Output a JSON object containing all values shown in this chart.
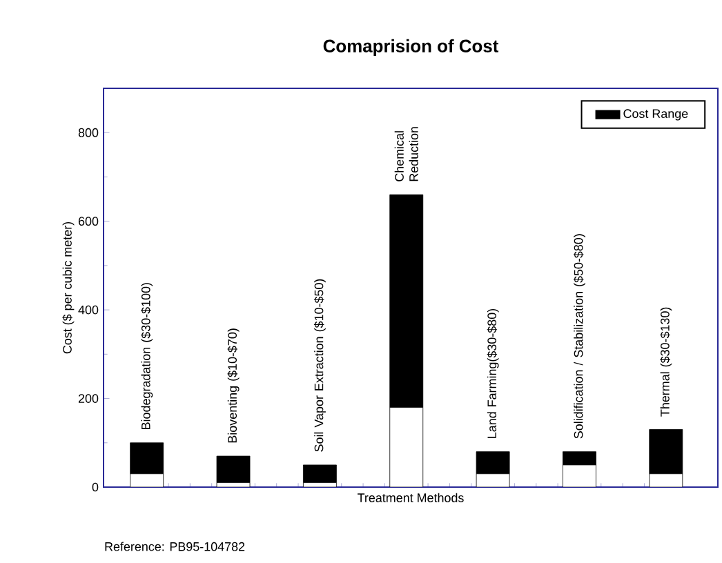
{
  "chart_data": {
    "type": "bar",
    "title": "Comaprision of Cost",
    "xlabel": "Treatment Methods",
    "ylabel": "Cost ($ per cubic meter)",
    "categories": [
      "Biodegradation  ($30-$100)",
      "Bioventing  ($10-$70)",
      "Soil Vapor Extraction  ($10-$50)",
      "Chemical Reduction",
      "Land Farming($30-$80)",
      "Solidification / Stabilization  ($50-$80)",
      "Thermal  ($30-$130)"
    ],
    "stacked": true,
    "series": [
      {
        "color": "#ffffff",
        "values": [
          30,
          10,
          10,
          180,
          30,
          50,
          30
        ]
      },
      {
        "name": "Cost Range",
        "color": "#000000",
        "values": [
          70,
          60,
          40,
          480,
          50,
          30,
          100
        ]
      }
    ],
    "ylim": [
      0,
      900
    ],
    "yticks": [
      0,
      200,
      400,
      600,
      800
    ],
    "legend": "top right",
    "grid": false,
    "annotations": [
      "Reference: PB95-104782"
    ]
  }
}
